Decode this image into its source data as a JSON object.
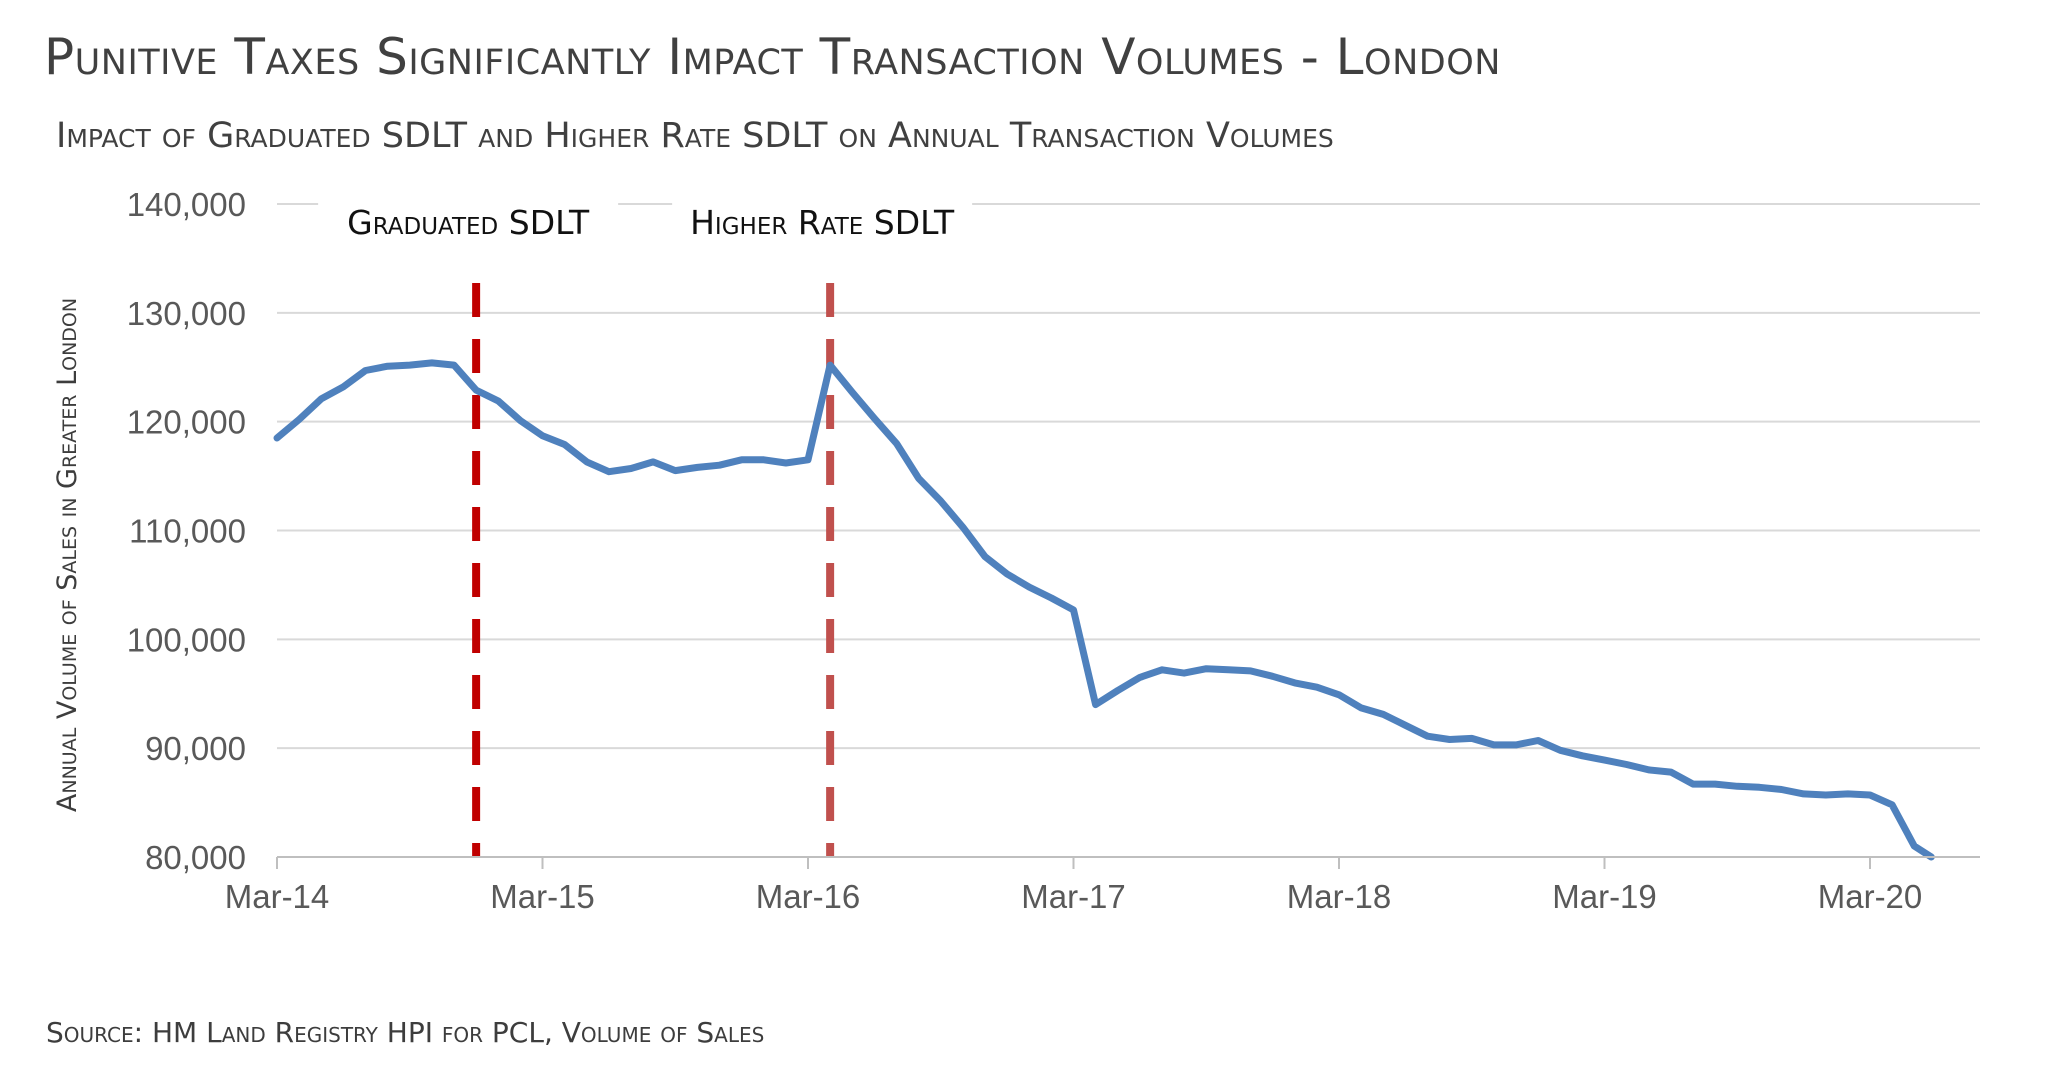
{
  "header": {
    "title": "Punitive Taxes Significantly Impact Transaction Volumes - London",
    "subtitle": "Impact of Graduated SDLT and Higher Rate SDLT on Annual Transaction Volumes"
  },
  "footer": {
    "source": "Source: HM Land Registry HPI for PCL, Volume of Sales"
  },
  "colors": {
    "line": "#4f81bd",
    "marker_graduated": "#c00000",
    "marker_higher": "#c0504d",
    "grid": "#d9d9d9",
    "axis_text": "#595959"
  },
  "chart_data": {
    "type": "line",
    "ylabel": "Annual Volume of Sales in Greater London",
    "xlabel": "",
    "ylim": [
      80000,
      140000
    ],
    "yticks": [
      80000,
      90000,
      100000,
      110000,
      120000,
      130000,
      140000
    ],
    "ytick_labels": [
      "80,000",
      "90,000",
      "100,000",
      "110,000",
      "120,000",
      "130,000",
      "140,000"
    ],
    "xtick_labels": [
      "Mar-14",
      "Mar-15",
      "Mar-16",
      "Mar-17",
      "Mar-18",
      "Mar-19",
      "Mar-20"
    ],
    "grid": true,
    "start": "Mar-14",
    "series": [
      {
        "values": [
          118500,
          120200,
          122100,
          123200,
          124700,
          125100,
          125200,
          125400,
          125200,
          122900,
          121900,
          120100,
          118700,
          117900,
          116300,
          115400,
          115700,
          116300,
          115500,
          115800,
          116000,
          116500,
          116500,
          116200,
          116500,
          125200,
          122700,
          120300,
          118000,
          114800,
          112700,
          110300,
          107600,
          106000,
          104800,
          103800,
          102700,
          94000,
          95300,
          96500,
          97200,
          96900,
          97300,
          97200,
          97100,
          96600,
          96000,
          95600,
          94900,
          93700,
          93100,
          92100,
          91100,
          90800,
          90900,
          90300,
          90300,
          90700,
          89800,
          89300,
          88900,
          88500,
          88000,
          87800,
          86700,
          86700,
          86500,
          86400,
          86200,
          85800,
          85700,
          85800,
          85700,
          84800,
          81000,
          79700
        ]
      }
    ],
    "annotations": [
      {
        "label": "Graduated SDLT",
        "date": "Dec-14"
      },
      {
        "label": "Higher Rate SDLT",
        "date": "Apr-16"
      }
    ]
  }
}
